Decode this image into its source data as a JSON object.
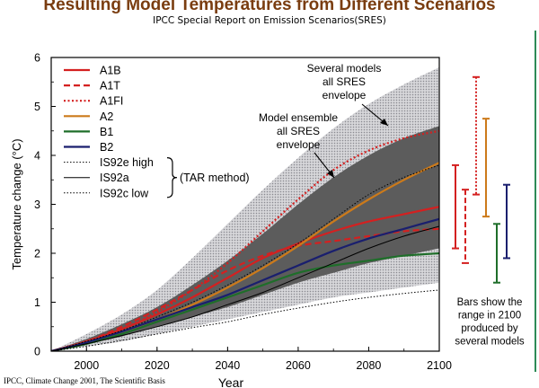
{
  "title": "Resulting Model Temperatures from Different Scenarios",
  "subtitle": "IPCC Special Report on Emission Scenarios(SRES)",
  "source": "IPCC, Climate Change 2001, The Scientific Basis",
  "colors": {
    "A1B": "#d42020",
    "A1T": "#d42020",
    "A1FI": "#d42020",
    "A2": "#cc7a1a",
    "B1": "#1f6e2a",
    "B2": "#1a1f6e",
    "IS92": "#000000",
    "outer_envelope": "#c8c8cc",
    "inner_envelope": "#5c5c5c",
    "title": "#7a3d10"
  },
  "chart_data": {
    "type": "line",
    "xlabel": "Year",
    "ylabel": "Temperature change (°C)",
    "xlim": [
      1990,
      2100
    ],
    "ylim": [
      0,
      6
    ],
    "x_ticks": [
      "2000",
      "2020",
      "2040",
      "2060",
      "2080",
      "2100"
    ],
    "y_ticks": [
      "0",
      "1",
      "2",
      "3",
      "4",
      "5",
      "6"
    ],
    "x": [
      1990,
      2000,
      2010,
      2020,
      2030,
      2040,
      2050,
      2060,
      2070,
      2080,
      2090,
      2100
    ],
    "envelopes": [
      {
        "label": "Several models all SRES envelope",
        "upper": [
          0,
          0.35,
          0.75,
          1.25,
          1.9,
          2.6,
          3.3,
          3.95,
          4.55,
          5.05,
          5.45,
          5.8
        ],
        "lower": [
          0,
          0.1,
          0.2,
          0.35,
          0.5,
          0.65,
          0.8,
          0.95,
          1.1,
          1.2,
          1.3,
          1.4
        ]
      },
      {
        "label": "Model ensemble all SRES envelope",
        "upper": [
          0,
          0.25,
          0.55,
          0.9,
          1.35,
          1.85,
          2.4,
          3.0,
          3.55,
          4.0,
          4.35,
          4.6
        ],
        "lower": [
          0,
          0.15,
          0.3,
          0.5,
          0.7,
          0.9,
          1.15,
          1.4,
          1.6,
          1.8,
          1.95,
          2.1
        ]
      }
    ],
    "series": [
      {
        "name": "A1B",
        "style": "solid",
        "values": [
          0,
          0.2,
          0.45,
          0.75,
          1.1,
          1.5,
          1.9,
          2.2,
          2.45,
          2.65,
          2.8,
          2.95
        ]
      },
      {
        "name": "A1T",
        "style": "dashed",
        "values": [
          0,
          0.2,
          0.5,
          0.85,
          1.25,
          1.65,
          1.95,
          2.15,
          2.25,
          2.35,
          2.45,
          2.5
        ]
      },
      {
        "name": "A1FI",
        "style": "dotted",
        "values": [
          0,
          0.2,
          0.45,
          0.8,
          1.25,
          1.8,
          2.45,
          3.1,
          3.7,
          4.1,
          4.35,
          4.5
        ]
      },
      {
        "name": "A2",
        "style": "solid",
        "values": [
          0,
          0.18,
          0.4,
          0.65,
          0.95,
          1.3,
          1.7,
          2.15,
          2.65,
          3.1,
          3.5,
          3.85
        ]
      },
      {
        "name": "B1",
        "style": "solid",
        "values": [
          0,
          0.15,
          0.35,
          0.6,
          0.85,
          1.1,
          1.35,
          1.6,
          1.75,
          1.85,
          1.95,
          2.0
        ]
      },
      {
        "name": "B2",
        "style": "solid",
        "values": [
          0,
          0.18,
          0.4,
          0.65,
          0.9,
          1.15,
          1.45,
          1.75,
          2.05,
          2.3,
          2.5,
          2.7
        ]
      },
      {
        "name": "IS92e high",
        "style": "dotted-thin",
        "values": [
          0,
          0.2,
          0.42,
          0.7,
          1.0,
          1.35,
          1.75,
          2.2,
          2.7,
          3.2,
          3.55,
          3.8
        ]
      },
      {
        "name": "IS92a",
        "style": "solid-thin",
        "values": [
          0,
          0.15,
          0.32,
          0.5,
          0.7,
          0.95,
          1.2,
          1.5,
          1.8,
          2.1,
          2.35,
          2.55
        ]
      },
      {
        "name": "IS92c low",
        "style": "dotted-thin",
        "values": [
          0,
          0.1,
          0.22,
          0.35,
          0.48,
          0.6,
          0.75,
          0.88,
          1.0,
          1.1,
          1.18,
          1.25
        ]
      }
    ],
    "range_bars_2100": [
      {
        "name": "A1B",
        "style": "solid",
        "low": 2.1,
        "high": 3.8
      },
      {
        "name": "A1T",
        "style": "dashed",
        "low": 1.8,
        "high": 3.3
      },
      {
        "name": "A1FI",
        "style": "dotted",
        "low": 3.2,
        "high": 5.6
      },
      {
        "name": "A2",
        "style": "solid",
        "low": 2.75,
        "high": 4.75
      },
      {
        "name": "B1",
        "style": "solid",
        "low": 1.4,
        "high": 2.6
      },
      {
        "name": "B2",
        "style": "solid",
        "low": 1.9,
        "high": 3.4
      }
    ],
    "legend": {
      "placement": "top-left",
      "entries": [
        "A1B",
        "A1T",
        "A1FI",
        "A2",
        "B1",
        "B2",
        "IS92e high",
        "IS92a",
        "IS92c low"
      ],
      "group_label": "(TAR method)"
    },
    "annotations": {
      "outer": [
        "Several models",
        "all SRES",
        "envelope"
      ],
      "inner": [
        "Model ensemble",
        "all SRES",
        "envelope"
      ],
      "bars_note": [
        "Bars show the",
        "range in 2100",
        "produced by",
        "several models"
      ]
    }
  }
}
